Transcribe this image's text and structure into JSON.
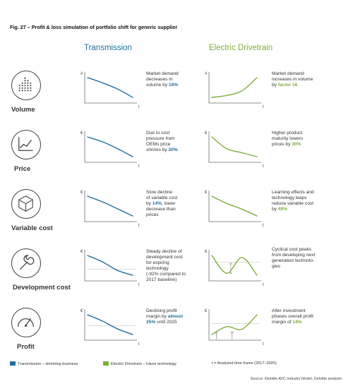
{
  "figure": {
    "title": "Fig. 27 – Profit & loss simulation of portfolio shift for generic supplier",
    "source": "Source: Deloitte AVC Industry Model, Deloitte analysis"
  },
  "columns": {
    "transmission": "Transmission",
    "electric": "Electric Drivetrain"
  },
  "colors": {
    "transmission": "#1f6f9e",
    "electric": "#7fae3b"
  },
  "rows": [
    {
      "label": "Volume",
      "icon": "bar-chart-icon",
      "y_axis": "#",
      "x_axis": "t",
      "trans_text": [
        "Market demand",
        "decreases in",
        "volume by "
      ],
      "trans_hl": "19%",
      "elec_text": [
        "Market demand",
        "increases in volume",
        "by "
      ],
      "elec_hl": "factor 16"
    },
    {
      "label": "Price",
      "icon": "trend-line-icon",
      "y_axis": "€",
      "x_axis": "t",
      "trans_text": [
        "Due to cost",
        "pressure from",
        "OEMs price",
        "shrinks by "
      ],
      "trans_hl": "20%",
      "elec_text": [
        "Higher product",
        "maturity lowers",
        "prices by "
      ],
      "elec_hl": "30%"
    },
    {
      "label": "Variable cost",
      "icon": "cube-icon",
      "y_axis": "€",
      "x_axis": "t",
      "trans_text": [
        "Slow decline",
        "of variable cost",
        "by ",
        ", lower",
        "decrease than",
        "prices"
      ],
      "trans_hl": "14%",
      "elec_text": [
        "Learning effects and",
        "technology leaps",
        "reduce variable cost",
        "by "
      ],
      "elec_hl": "49%"
    },
    {
      "label": "Development cost",
      "icon": "wrench-icon",
      "y_axis": "€",
      "x_axis": "t",
      "trans_text": [
        "Steady decline of",
        "development cost",
        "for expiring",
        "technology",
        "(-92% compared to",
        "2017 baseline)"
      ],
      "elec_text": [
        "Cyclical cost peaks",
        "from developing next",
        "generation technolo-",
        "gies"
      ]
    },
    {
      "label": "Profit",
      "icon": "gauge-icon",
      "y_axis": "€",
      "x_axis": "t",
      "trans_text": [
        "Declining profit",
        "margin by ",
        "almost",
        "25%",
        " until 2025"
      ],
      "elec_text": [
        "After investment",
        "phases overall profit",
        "margin of "
      ],
      "elec_hl": "14%"
    }
  ],
  "legend": {
    "transmission": "Transmission – shrinking business",
    "electric": "Electric Drivetrain – future technology",
    "time": "t = Analyzed time frame (2017–2025)"
  },
  "chart_data": [
    {
      "type": "line",
      "name": "Volume – Transmission",
      "y": [
        1.0,
        0.95,
        0.89,
        0.81
      ]
    },
    {
      "type": "line",
      "name": "Volume – Electric Drivetrain",
      "y": [
        1.0,
        2.5,
        6.0,
        16.0
      ]
    },
    {
      "type": "line",
      "name": "Price – Transmission",
      "y": [
        1.0,
        0.95,
        0.88,
        0.8
      ]
    },
    {
      "type": "line",
      "name": "Price – Electric Drivetrain",
      "y": [
        1.0,
        0.82,
        0.76,
        0.7
      ]
    },
    {
      "type": "line",
      "name": "Variable cost – Transmission",
      "y": [
        1.0,
        0.96,
        0.91,
        0.86
      ]
    },
    {
      "type": "line",
      "name": "Variable cost – Electric Drivetrain",
      "y": [
        1.0,
        0.82,
        0.68,
        0.51
      ]
    },
    {
      "type": "line",
      "name": "Development cost – Transmission",
      "y": [
        1.0,
        0.7,
        0.3,
        0.08
      ]
    },
    {
      "type": "line",
      "name": "Development cost – Electric Drivetrain",
      "y": [
        1.0,
        0.55,
        0.95,
        0.5
      ]
    },
    {
      "type": "line",
      "name": "Profit – Transmission",
      "y": [
        1.0,
        0.92,
        0.82,
        0.75
      ]
    },
    {
      "type": "line",
      "name": "Profit – Electric Drivetrain",
      "y": [
        0.1,
        0.4,
        0.3,
        0.85
      ]
    }
  ]
}
